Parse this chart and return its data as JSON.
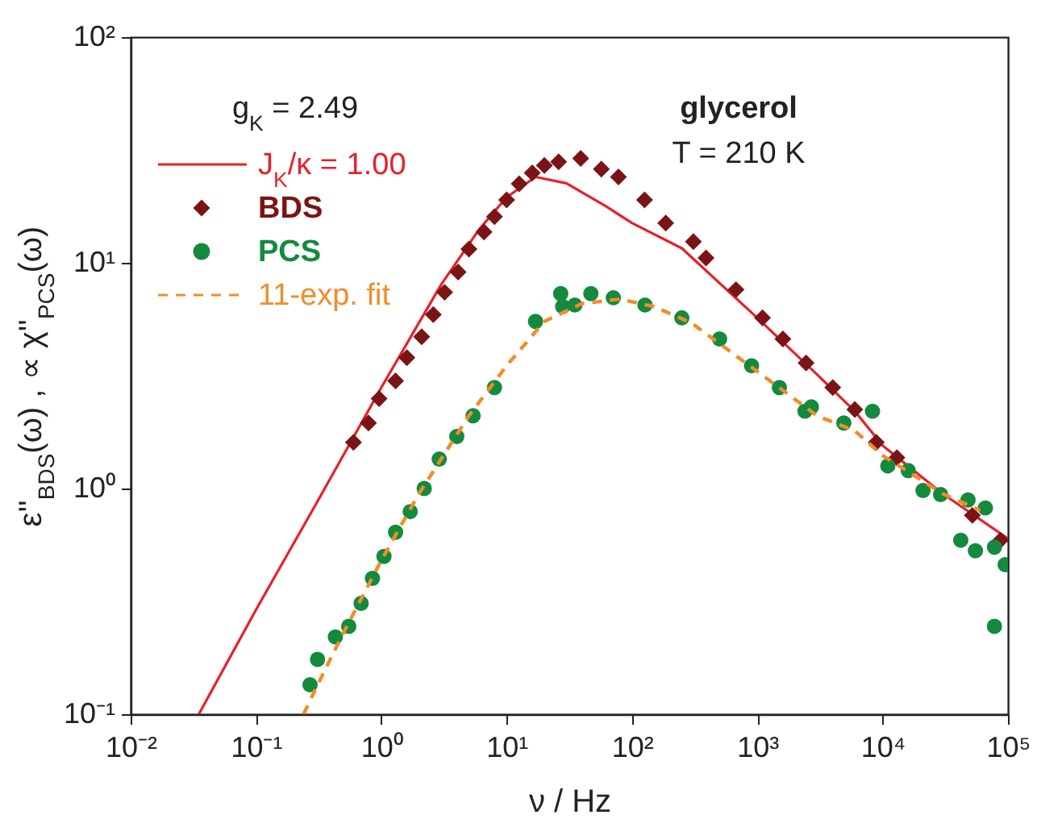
{
  "chart_data": {
    "type": "line",
    "xlabel": "ν / Hz",
    "ylabel": "ε''$_{BDS}$(ω) , ∝ χ''$_{PCS}$(ω)",
    "log": "xy",
    "grid": false,
    "legend": "top left",
    "xlim": [
      0.01,
      100000
    ],
    "ylim": [
      0.1,
      100
    ],
    "xticks": [
      {
        "value": 0.01,
        "label": "10⁻²"
      },
      {
        "value": 0.1,
        "label": "10⁻¹"
      },
      {
        "value": 1,
        "label": "10⁰"
      },
      {
        "value": 10,
        "label": "10¹"
      },
      {
        "value": 100,
        "label": "10²"
      },
      {
        "value": 1000,
        "label": "10³"
      },
      {
        "value": 10000,
        "label": "10⁴"
      },
      {
        "value": 100000,
        "label": "10⁵"
      }
    ],
    "yticks": [
      {
        "value": 0.1,
        "label": "10⁻¹"
      },
      {
        "value": 1,
        "label": "10⁰"
      },
      {
        "value": 10,
        "label": "10¹"
      },
      {
        "value": 100,
        "label": "10²"
      }
    ],
    "annotations": [
      "g$_{K}$ = 2.49",
      "glycerol",
      "T = 210 K"
    ],
    "series": [
      {
        "type": "line",
        "name": "J$_{K}$/κ = 1.00",
        "color": "#e8202a",
        "line_style": "solid",
        "x": [
          0.035,
          0.1,
          0.3,
          1,
          3,
          6,
          10,
          17,
          30,
          60,
          100,
          250,
          1000,
          3000,
          6000,
          10000,
          30000,
          100000
        ],
        "values": [
          0.1,
          0.29,
          0.85,
          2.8,
          8,
          14,
          19.5,
          24,
          22.5,
          18,
          15,
          11.6,
          5.7,
          3.2,
          2.2,
          1.55,
          0.95,
          0.6
        ]
      },
      {
        "type": "scatter",
        "name": "BDS",
        "color": "#7b1416",
        "marker": "diamond",
        "x": [
          0.6,
          0.79,
          0.96,
          1.3,
          1.6,
          2.1,
          2.6,
          3.2,
          4.1,
          5,
          6.6,
          8,
          10,
          12.6,
          16,
          20,
          26,
          39,
          57,
          78,
          126,
          186,
          309,
          390,
          676,
          1100,
          1600,
          2450,
          4000,
          6000,
          8900,
          13000,
          52000,
          87000
        ],
        "values": [
          1.6,
          1.95,
          2.5,
          3,
          3.8,
          4.7,
          5.9,
          7.4,
          9.1,
          11.5,
          13.7,
          16,
          19,
          22.4,
          25,
          27,
          28,
          29,
          26,
          24,
          19,
          15,
          12.4,
          10.5,
          7.6,
          5.7,
          4.6,
          3.6,
          2.8,
          2.24,
          1.6,
          1.37,
          0.76,
          0.59
        ]
      },
      {
        "type": "scatter",
        "name": "PCS",
        "color": "#138a3e",
        "marker": "circle",
        "x": [
          0.27,
          0.31,
          0.43,
          0.55,
          0.69,
          0.85,
          1.05,
          1.3,
          1.7,
          2.2,
          2.9,
          4,
          5.4,
          8,
          17,
          27,
          28,
          35,
          47,
          71,
          127,
          250,
          500,
          900,
          1500,
          2400,
          2700,
          4900,
          8300,
          11000,
          16000,
          21000,
          29000,
          42000,
          48000,
          55000,
          66000,
          78000,
          78000,
          95000
        ],
        "values": [
          0.135,
          0.175,
          0.22,
          0.245,
          0.31,
          0.4,
          0.5,
          0.64,
          0.79,
          1,
          1.35,
          1.7,
          2.1,
          2.8,
          5.5,
          7.3,
          6.4,
          6.5,
          7.3,
          7,
          6.5,
          5.7,
          4.6,
          3.5,
          2.8,
          2.2,
          2.3,
          1.95,
          2.2,
          1.26,
          1.2,
          0.98,
          0.94,
          0.59,
          0.89,
          0.53,
          0.82,
          0.55,
          0.245,
          0.46
        ]
      },
      {
        "type": "line",
        "name": "11-exp. fit",
        "color": "#f28c28",
        "line_style": "dashed",
        "x": [
          0.24,
          0.3,
          0.5,
          1,
          2,
          5,
          10,
          20,
          40,
          80,
          150,
          300,
          1000,
          3000,
          6000,
          10000,
          30000,
          60000
        ],
        "values": [
          0.1,
          0.13,
          0.23,
          0.48,
          0.95,
          2.1,
          3.5,
          5.5,
          6.6,
          6.9,
          6.4,
          5.4,
          3.3,
          2.1,
          1.8,
          1.4,
          0.95,
          0.8
        ]
      }
    ]
  }
}
